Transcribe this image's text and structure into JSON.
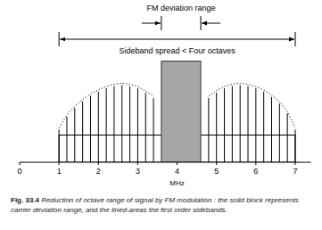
{
  "chart_data": {
    "type": "spectrum",
    "figure_label": "Fig. 33.4",
    "title": "Reduction of octave range of signal by FM modulation : the solid block represents carrier deviation range, and the lined-areas the first order sidebands.",
    "x_label": "MHz",
    "xlim": [
      0,
      7.4
    ],
    "xticks": [
      0,
      1,
      2,
      3,
      4,
      5,
      6,
      7
    ],
    "ylim": [
      0,
      10
    ],
    "tick_labels": "x",
    "series": [
      {
        "color": "#000000",
        "x": [
          1.0,
          1.2,
          1.4,
          1.6,
          1.8,
          2.0,
          2.2,
          2.4,
          2.6,
          2.8,
          3.0,
          3.2,
          3.4,
          4.8,
          5.0,
          5.2,
          5.4,
          5.6,
          5.8,
          6.0,
          6.2,
          6.4,
          6.6,
          6.8,
          7.0
        ],
        "values": [
          3.0,
          4.2,
          5.0,
          5.6,
          6.1,
          6.5,
          6.8,
          7.0,
          7.1,
          7.0,
          6.8,
          6.4,
          5.9,
          5.9,
          6.4,
          6.8,
          7.0,
          7.1,
          7.0,
          6.8,
          6.5,
          6.0,
          5.4,
          4.5,
          3.0
        ]
      }
    ],
    "carrier_block": {
      "x0": 3.6,
      "x1": 4.6,
      "value": 9.3,
      "color": "#a6a6a6"
    },
    "baseline_band": {
      "x0": 1,
      "x1": 7,
      "value": 2.5
    },
    "deviation_annotation": {
      "text": "FM deviation range",
      "x0": 3.6,
      "x1": 4.6
    },
    "spread_annotation": {
      "text": "Sideband spread < Four octaves",
      "x0": 1,
      "x1": 7
    }
  }
}
